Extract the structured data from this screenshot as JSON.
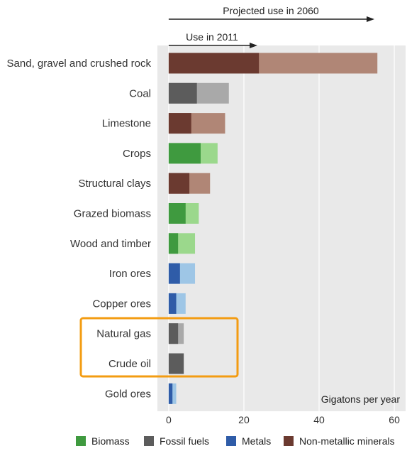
{
  "chart_data": {
    "type": "bar",
    "orientation": "horizontal",
    "stacked_overlay": true,
    "categories": [
      "Sand, gravel and crushed rock",
      "Coal",
      "Limestone",
      "Crops",
      "Structural clays",
      "Grazed biomass",
      "Wood and timber",
      "Iron ores",
      "Copper ores",
      "Natural gas",
      "Crude oil",
      "Gold ores"
    ],
    "category_group": [
      "Non-metallic minerals",
      "Fossil fuels",
      "Non-metallic minerals",
      "Biomass",
      "Non-metallic minerals",
      "Biomass",
      "Biomass",
      "Metals",
      "Metals",
      "Fossil fuels",
      "Fossil fuels",
      "Metals"
    ],
    "series": [
      {
        "values": [
          24,
          7.5,
          6,
          8.5,
          5.5,
          4.5,
          2.5,
          3,
          2,
          2.5,
          4,
          1
        ]
      },
      {
        "values": [
          55.5,
          16,
          15,
          13,
          11,
          8,
          7,
          7,
          4.5,
          4,
          4,
          2
        ]
      }
    ],
    "annotations": {
      "use_2011": "Use in 2011",
      "use_2060": "Projected use in 2060",
      "highlight_box": [
        "Natural gas",
        "Crude oil"
      ]
    },
    "unit_label": "Gigatons per year",
    "xlim": [
      -3,
      63
    ],
    "xticks": [
      0,
      20,
      40,
      60
    ],
    "grid": true,
    "legend_position": "bottom",
    "legend": [
      "Biomass",
      "Fossil fuels",
      "Metals",
      "Non-metallic minerals"
    ],
    "colors": {
      "Biomass": {
        "dark": "#3f9a3f",
        "light": "#9bd88c"
      },
      "Fossil fuels": {
        "dark": "#5c5c5c",
        "light": "#a9a9a9"
      },
      "Metals": {
        "dark": "#2f5ca8",
        "light": "#9ec6e6"
      },
      "Non-metallic minerals": {
        "dark": "#6b3a30",
        "light": "#b08676"
      },
      "plot_background": "#e9e9e9",
      "highlight_box": "#f39c12"
    }
  }
}
